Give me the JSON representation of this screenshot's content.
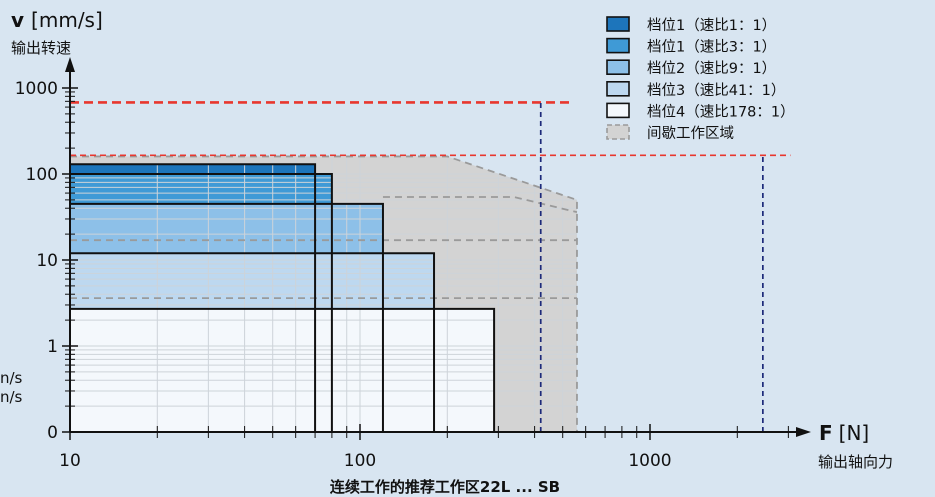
{
  "chart_data": {
    "type": "area",
    "title": "连续工作的推荐工作区22L ... SB",
    "x_axis": {
      "symbol": "F",
      "unit": "[N]",
      "label": "输出轴向力",
      "scale": "log",
      "range": [
        10,
        3000
      ],
      "ticks": [
        {
          "value": 10,
          "label": "10"
        },
        {
          "value": 100,
          "label": "100"
        },
        {
          "value": 1000,
          "label": "1000"
        }
      ]
    },
    "y_axis": {
      "symbol": "v",
      "unit": "[mm/s]",
      "label": "输出转速",
      "scale": "log",
      "range": [
        0,
        2000
      ],
      "ticks": [
        {
          "value": 1000,
          "label": "1000"
        },
        {
          "value": 100,
          "label": "100"
        },
        {
          "value": 10,
          "label": "10"
        },
        {
          "value": 1,
          "label": "1"
        },
        {
          "value": 0,
          "label": "0"
        }
      ]
    },
    "grid": true,
    "legend_position": "top-right",
    "series": [
      {
        "name": "档位1（速比1：1）",
        "max_force": 70,
        "max_speed": 130,
        "color": "#1d75bb"
      },
      {
        "name": "档位1（速比3：1）",
        "max_force": 80,
        "max_speed": 100,
        "color": "#3f9ad6"
      },
      {
        "name": "档位2（速比9：1）",
        "max_force": 120,
        "max_speed": 45,
        "color": "#8dc0e8"
      },
      {
        "name": "档位3（速比41：1）",
        "max_force": 180,
        "max_speed": 12,
        "color": "#bdd8f0"
      },
      {
        "name": "档位4（速比178：1）",
        "max_force": 290,
        "max_speed": 2.7,
        "color": "#f4f8fc"
      }
    ],
    "intermittent_zone": {
      "name": "间歇工作区域",
      "color": "#d3d3d3",
      "edge_color": "#9a9a9a",
      "boundary": [
        [
          10,
          160
        ],
        [
          200,
          160
        ],
        [
          560,
          50
        ],
        [
          560,
          0
        ]
      ],
      "dashed_lines": [
        [
          [
            120,
            54
          ],
          [
            340,
            54
          ],
          [
            560,
            36
          ]
        ],
        [
          [
            10,
            17
          ],
          [
            560,
            17
          ]
        ],
        [
          [
            10,
            3.6
          ],
          [
            560,
            3.6
          ]
        ]
      ]
    },
    "reference_lines": [
      {
        "orientation": "horizontal",
        "value": 680,
        "from": 10,
        "to": 540,
        "color": "#e8372e",
        "style": "dashed-bold"
      },
      {
        "orientation": "horizontal",
        "value": 165,
        "from": 10,
        "to": 3050,
        "color": "#e8372e",
        "style": "dashed"
      },
      {
        "orientation": "vertical",
        "value": 420,
        "from": 0,
        "to": 680,
        "color": "#1d2a7a",
        "style": "dashed"
      },
      {
        "orientation": "vertical",
        "value": 2450,
        "from": 0,
        "to": 165,
        "color": "#1d2a7a",
        "style": "dashed"
      }
    ]
  },
  "edge_fragments": [
    "n/s",
    "n/s"
  ]
}
